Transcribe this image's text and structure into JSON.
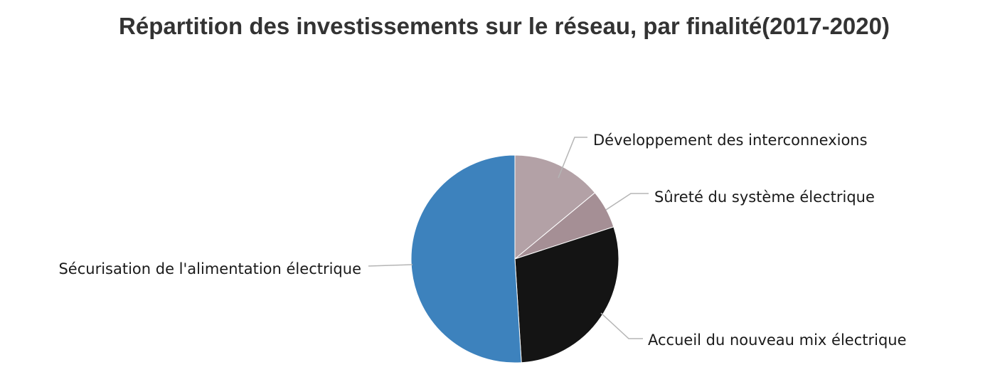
{
  "chart_data": {
    "type": "pie",
    "title": "Répartition des investissements sur le réseau, par finalité(2017-2020)",
    "start_angle_deg": 0,
    "direction": "clockwise",
    "legend": "none",
    "slices": [
      {
        "label": "Développement des interconnexions",
        "value": 14,
        "color": "#b3a1a6"
      },
      {
        "label": "Sûreté du système électrique",
        "value": 6,
        "color": "#a58f95"
      },
      {
        "label": "Accueil du nouveau mix électrique",
        "value": 29,
        "color": "#141414"
      },
      {
        "label": "Sécurisation de l'alimentation électrique",
        "value": 51,
        "color": "#3d82bd"
      }
    ]
  }
}
